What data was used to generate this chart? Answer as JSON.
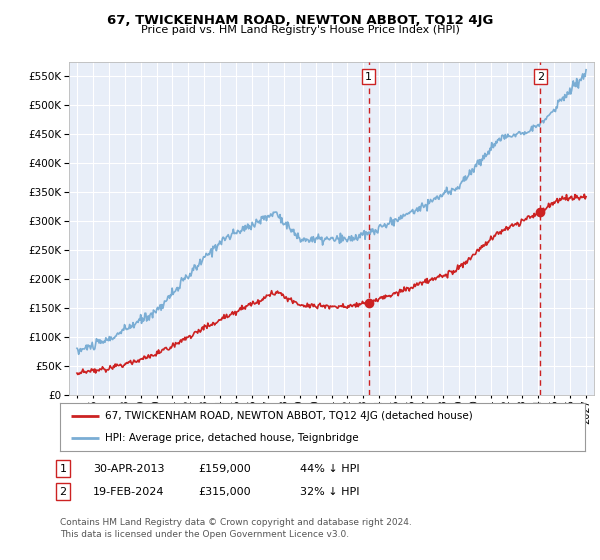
{
  "title": "67, TWICKENHAM ROAD, NEWTON ABBOT, TQ12 4JG",
  "subtitle": "Price paid vs. HM Land Registry's House Price Index (HPI)",
  "hpi_color": "#7aadd4",
  "price_color": "#cc2222",
  "dashed_vline_color": "#cc2222",
  "background_color": "#e8eef8",
  "grid_color": "#ffffff",
  "ylim": [
    0,
    575000
  ],
  "yticks": [
    0,
    50000,
    100000,
    150000,
    200000,
    250000,
    300000,
    350000,
    400000,
    450000,
    500000,
    550000
  ],
  "xlim_start": 1994.5,
  "xlim_end": 2027.5,
  "sale1_year": 2013.33,
  "sale1_price": 159000,
  "sale2_year": 2024.12,
  "sale2_price": 315000,
  "legend_price_label": "67, TWICKENHAM ROAD, NEWTON ABBOT, TQ12 4JG (detached house)",
  "legend_hpi_label": "HPI: Average price, detached house, Teignbridge",
  "copyright": "Contains HM Land Registry data © Crown copyright and database right 2024.\nThis data is licensed under the Open Government Licence v3.0."
}
